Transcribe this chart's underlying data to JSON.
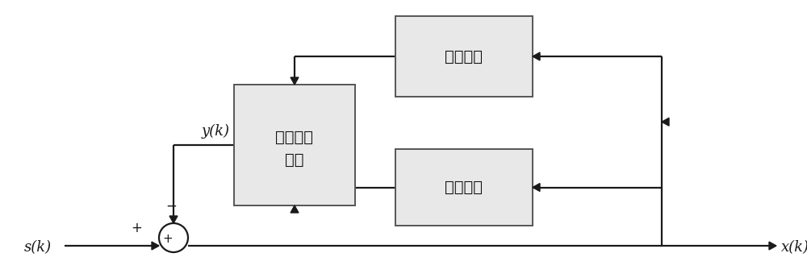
{
  "bg_color": "#ffffff",
  "line_color": "#1a1a1a",
  "box_facecolor": "#e8e8e8",
  "box_edgecolor": "#555555",
  "labels": {
    "s_k": "s(k)",
    "x_k": "x(k)",
    "y_k": "y(k)",
    "harmonic_box_line1": "加权各次",
    "harmonic_box_line2": "谐波",
    "highpass_box": "高通滤波",
    "lowpass_box": "低通滤波"
  },
  "font_size_label": 13,
  "font_size_box": 14,
  "lw": 1.6,
  "blw": 1.4,
  "arrow_size": 10
}
